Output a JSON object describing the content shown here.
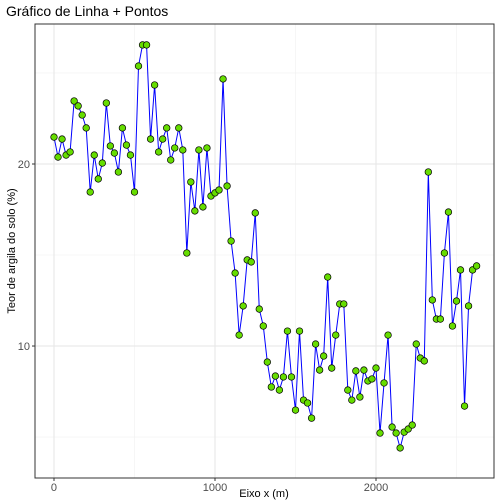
{
  "chart_data": {
    "type": "line",
    "title": "Gráfico de Linha + Pontos",
    "x_label": "Eixo x (m)",
    "y_label": "Teor de argila do solo (%)",
    "x": [
      0,
      25,
      50,
      75,
      100,
      125,
      150,
      175,
      200,
      225,
      250,
      275,
      300,
      325,
      350,
      375,
      400,
      425,
      450,
      475,
      500,
      525,
      550,
      575,
      600,
      625,
      650,
      675,
      700,
      725,
      750,
      775,
      800,
      825,
      850,
      875,
      900,
      925,
      950,
      975,
      1000,
      1025,
      1050,
      1075,
      1100,
      1125,
      1150,
      1175,
      1200,
      1225,
      1250,
      1275,
      1300,
      1325,
      1350,
      1375,
      1400,
      1425,
      1450,
      1475,
      1500,
      1525,
      1550,
      1575,
      1600,
      1625,
      1650,
      1675,
      1700,
      1725,
      1750,
      1775,
      1800,
      1825,
      1850,
      1875,
      1900,
      1925,
      1950,
      1975,
      2000,
      2025,
      2050,
      2075,
      2100,
      2125,
      2150,
      2175,
      2200,
      2225,
      2250,
      2275,
      2300,
      2325,
      2350,
      2375,
      2400,
      2425,
      2450,
      2475,
      2500,
      2525,
      2550,
      2575,
      2600,
      2625
    ],
    "series": [
      {
        "name": "Teor de argila",
        "line_color": "#0000ff",
        "point_color": "#66dd00",
        "values": [
          21.48,
          20.38,
          21.37,
          20.49,
          20.66,
          23.46,
          23.19,
          22.69,
          21.98,
          18.46,
          20.49,
          19.18,
          20.05,
          23.35,
          20.99,
          20.6,
          19.56,
          21.98,
          21.04,
          20.49,
          18.46,
          25.38,
          26.54,
          26.54,
          21.37,
          24.34,
          20.66,
          21.37,
          21.98,
          20.22,
          20.88,
          21.98,
          20.77,
          15.11,
          19.01,
          17.42,
          20.77,
          17.64,
          20.88,
          18.24,
          18.41,
          18.57,
          24.67,
          18.79,
          15.77,
          14.01,
          10.6,
          12.2,
          14.73,
          14.62,
          17.31,
          12.03,
          11.1,
          9.12,
          7.75,
          8.35,
          7.58,
          8.3,
          10.82,
          8.3,
          6.48,
          10.82,
          7.03,
          6.87,
          6.04,
          10.11,
          8.68,
          9.45,
          13.79,
          8.79,
          10.6,
          12.31,
          12.31,
          7.58,
          7.03,
          8.63,
          7.2,
          8.68,
          8.08,
          8.19,
          8.79,
          5.22,
          7.97,
          10.6,
          5.55,
          5.22,
          4.4,
          5.27,
          5.44,
          5.66,
          10.11,
          9.34,
          9.18,
          19.56,
          12.53,
          11.48,
          11.48,
          15.11,
          17.36,
          11.1,
          12.47,
          14.18,
          6.7,
          12.2,
          14.18,
          14.4
        ]
      }
    ],
    "xlim": [
      -118,
      2733
    ],
    "ylim": [
      2.75,
      27.69
    ],
    "xticks": [
      0,
      1000,
      2000
    ],
    "yticks": [
      10,
      20
    ],
    "x_minor_ticks": [
      500,
      1500,
      2500
    ],
    "y_minor_ticks": [
      5,
      15,
      25
    ],
    "grid": true
  }
}
